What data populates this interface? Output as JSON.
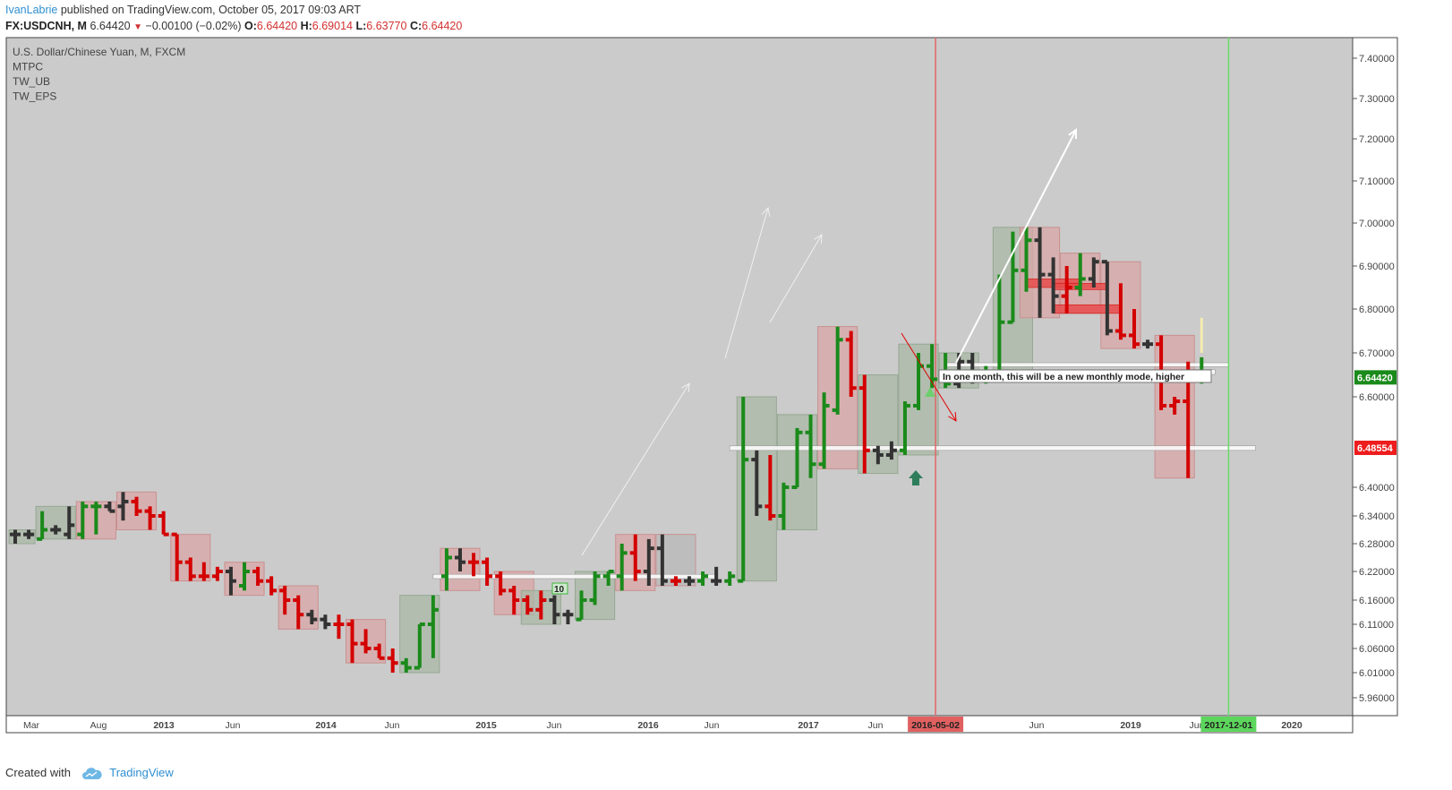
{
  "header": {
    "author": "IvanLabrie",
    "published_text": "published on TradingView.com, October 05, 2017 09:03 ART",
    "symbol": "FX:USDCNH, M",
    "last": "6.64420",
    "change": "−0.00100 (−0.02%)",
    "open_label": "O:",
    "open": "6.64420",
    "high_label": "H:",
    "high": "6.69014",
    "low_label": "L:",
    "low": "6.63770",
    "close_label": "C:",
    "close": "6.64420"
  },
  "legend": [
    "U.S. Dollar/Chinese Yuan, M, FXCM",
    "MTPC",
    "TW_UB",
    "TW_EPS"
  ],
  "footer": {
    "created_with": "Created with",
    "brand": "TradingView"
  },
  "colors": {
    "bull": "#1a8a1a",
    "bear": "#d40000",
    "neutral": "#333333",
    "plot_bg": "#cbcbcb",
    "bull_box": "#a9b8a6",
    "bear_box": "#d9a7a7",
    "vline_red": "#e06666",
    "vline_green": "#66dd66"
  },
  "chart_data": {
    "type": "ohlc",
    "title": "U.S. Dollar/Chinese Yuan, M, FXCM",
    "price_axis": {
      "ticks": [
        "7.40000",
        "7.30000",
        "7.20000",
        "7.10000",
        "7.00000",
        "6.90000",
        "6.80000",
        "6.70000",
        "6.60000",
        "6.40000",
        "6.34000",
        "6.28000",
        "6.22000",
        "6.16000",
        "6.11000",
        "6.06000",
        "6.01000",
        "5.96000"
      ],
      "last_price_label": "6.64420",
      "marker_label": "6.48554"
    },
    "time_axis": {
      "ticks": [
        "Mar",
        "Aug",
        "2013",
        "Jun",
        "2014",
        "Jun",
        "2015",
        "Jun",
        "2016",
        "Jun",
        "2017",
        "Jun",
        "Jun",
        "2019",
        "Jun",
        "2020"
      ],
      "highlight_red": "2016-05-02",
      "highlight_green": "2017-12-01"
    },
    "x_range": [
      "2012-01",
      "2020-07"
    ],
    "bars": [
      {
        "t": "2012-01",
        "o": 6.3,
        "h": 6.31,
        "l": 6.28,
        "c": 6.3,
        "d": "n"
      },
      {
        "t": "2012-02",
        "o": 6.3,
        "h": 6.31,
        "l": 6.29,
        "c": 6.3,
        "d": "n"
      },
      {
        "t": "2012-03",
        "o": 6.29,
        "h": 6.35,
        "l": 6.29,
        "c": 6.31,
        "d": "u"
      },
      {
        "t": "2012-04",
        "o": 6.31,
        "h": 6.32,
        "l": 6.3,
        "c": 6.31,
        "d": "n"
      },
      {
        "t": "2012-05",
        "o": 6.3,
        "h": 6.36,
        "l": 6.29,
        "c": 6.32,
        "d": "n"
      },
      {
        "t": "2012-06",
        "o": 6.3,
        "h": 6.37,
        "l": 6.29,
        "c": 6.36,
        "d": "u"
      },
      {
        "t": "2012-07",
        "o": 6.36,
        "h": 6.37,
        "l": 6.3,
        "c": 6.36,
        "d": "u"
      },
      {
        "t": "2012-08",
        "o": 6.36,
        "h": 6.37,
        "l": 6.35,
        "c": 6.35,
        "d": "n"
      },
      {
        "t": "2012-09",
        "o": 6.36,
        "h": 6.39,
        "l": 6.33,
        "c": 6.37,
        "d": "n"
      },
      {
        "t": "2012-10",
        "o": 6.37,
        "h": 6.38,
        "l": 6.34,
        "c": 6.35,
        "d": "d"
      },
      {
        "t": "2012-11",
        "o": 6.35,
        "h": 6.36,
        "l": 6.31,
        "c": 6.34,
        "d": "d"
      },
      {
        "t": "2012-12",
        "o": 6.34,
        "h": 6.35,
        "l": 6.3,
        "c": 6.3,
        "d": "d"
      },
      {
        "t": "2013-01",
        "o": 6.3,
        "h": 6.3,
        "l": 6.2,
        "c": 6.24,
        "d": "d"
      },
      {
        "t": "2013-02",
        "o": 6.24,
        "h": 6.25,
        "l": 6.2,
        "c": 6.21,
        "d": "d"
      },
      {
        "t": "2013-03",
        "o": 6.21,
        "h": 6.24,
        "l": 6.2,
        "c": 6.21,
        "d": "d"
      },
      {
        "t": "2013-04",
        "o": 6.21,
        "h": 6.23,
        "l": 6.2,
        "c": 6.22,
        "d": "d"
      },
      {
        "t": "2013-05",
        "o": 6.22,
        "h": 6.23,
        "l": 6.17,
        "c": 6.2,
        "d": "n"
      },
      {
        "t": "2013-06",
        "o": 6.19,
        "h": 6.24,
        "l": 6.18,
        "c": 6.22,
        "d": "u"
      },
      {
        "t": "2013-07",
        "o": 6.22,
        "h": 6.23,
        "l": 6.19,
        "c": 6.2,
        "d": "d"
      },
      {
        "t": "2013-08",
        "o": 6.2,
        "h": 6.21,
        "l": 6.17,
        "c": 6.18,
        "d": "d"
      },
      {
        "t": "2013-09",
        "o": 6.18,
        "h": 6.19,
        "l": 6.13,
        "c": 6.16,
        "d": "d"
      },
      {
        "t": "2013-10",
        "o": 6.16,
        "h": 6.17,
        "l": 6.1,
        "c": 6.13,
        "d": "d"
      },
      {
        "t": "2013-11",
        "o": 6.13,
        "h": 6.14,
        "l": 6.11,
        "c": 6.12,
        "d": "n"
      },
      {
        "t": "2013-12",
        "o": 6.12,
        "h": 6.13,
        "l": 6.1,
        "c": 6.11,
        "d": "n"
      },
      {
        "t": "2014-01",
        "o": 6.11,
        "h": 6.13,
        "l": 6.08,
        "c": 6.11,
        "d": "d"
      },
      {
        "t": "2014-02",
        "o": 6.11,
        "h": 6.12,
        "l": 6.03,
        "c": 6.07,
        "d": "d"
      },
      {
        "t": "2014-03",
        "o": 6.07,
        "h": 6.1,
        "l": 6.05,
        "c": 6.06,
        "d": "d"
      },
      {
        "t": "2014-04",
        "o": 6.06,
        "h": 6.07,
        "l": 6.04,
        "c": 6.04,
        "d": "d"
      },
      {
        "t": "2014-05",
        "o": 6.04,
        "h": 6.06,
        "l": 6.01,
        "c": 6.03,
        "d": "d"
      },
      {
        "t": "2014-06",
        "o": 6.03,
        "h": 6.04,
        "l": 6.01,
        "c": 6.02,
        "d": "u"
      },
      {
        "t": "2014-07",
        "o": 6.02,
        "h": 6.11,
        "l": 6.02,
        "c": 6.11,
        "d": "u"
      },
      {
        "t": "2014-08",
        "o": 6.11,
        "h": 6.17,
        "l": 6.04,
        "c": 6.14,
        "d": "u"
      },
      {
        "t": "2014-09",
        "o": 6.21,
        "h": 6.27,
        "l": 6.18,
        "c": 6.25,
        "d": "u"
      },
      {
        "t": "2014-10",
        "o": 6.25,
        "h": 6.27,
        "l": 6.22,
        "c": 6.24,
        "d": "n"
      },
      {
        "t": "2014-11",
        "o": 6.24,
        "h": 6.26,
        "l": 6.21,
        "c": 6.24,
        "d": "d"
      },
      {
        "t": "2014-12",
        "o": 6.24,
        "h": 6.25,
        "l": 6.19,
        "c": 6.21,
        "d": "d"
      },
      {
        "t": "2015-01",
        "o": 6.21,
        "h": 6.22,
        "l": 6.17,
        "c": 6.18,
        "d": "d"
      },
      {
        "t": "2015-02",
        "o": 6.18,
        "h": 6.19,
        "l": 6.13,
        "c": 6.16,
        "d": "d"
      },
      {
        "t": "2015-03",
        "o": 6.16,
        "h": 6.17,
        "l": 6.13,
        "c": 6.14,
        "d": "d"
      },
      {
        "t": "2015-04",
        "o": 6.14,
        "h": 6.18,
        "l": 6.12,
        "c": 6.16,
        "d": "d"
      },
      {
        "t": "2015-05",
        "o": 6.16,
        "h": 6.17,
        "l": 6.11,
        "c": 6.13,
        "d": "n"
      },
      {
        "t": "2015-06",
        "o": 6.13,
        "h": 6.14,
        "l": 6.11,
        "c": 6.13,
        "d": "n"
      },
      {
        "t": "2015-07",
        "o": 6.12,
        "h": 6.18,
        "l": 6.12,
        "c": 6.16,
        "d": "u"
      },
      {
        "t": "2015-08",
        "o": 6.16,
        "h": 6.22,
        "l": 6.15,
        "c": 6.21,
        "d": "u"
      },
      {
        "t": "2015-09",
        "o": 6.21,
        "h": 6.22,
        "l": 6.19,
        "c": 6.22,
        "d": "u"
      },
      {
        "t": "2015-10",
        "o": 6.21,
        "h": 6.28,
        "l": 6.18,
        "c": 6.26,
        "d": "u"
      },
      {
        "t": "2015-11",
        "o": 6.26,
        "h": 6.3,
        "l": 6.2,
        "c": 6.22,
        "d": "d"
      },
      {
        "t": "2015-12",
        "o": 6.22,
        "h": 6.29,
        "l": 6.19,
        "c": 6.27,
        "d": "n"
      },
      {
        "t": "2016-01",
        "o": 6.27,
        "h": 6.3,
        "l": 6.19,
        "c": 6.2,
        "d": "n"
      },
      {
        "t": "2016-02",
        "o": 6.2,
        "h": 6.21,
        "l": 6.19,
        "c": 6.2,
        "d": "d"
      },
      {
        "t": "2016-03",
        "o": 6.2,
        "h": 6.21,
        "l": 6.19,
        "c": 6.2,
        "d": "n"
      },
      {
        "t": "2016-04",
        "o": 6.2,
        "h": 6.22,
        "l": 6.19,
        "c": 6.21,
        "d": "u"
      },
      {
        "t": "2016-05",
        "o": 6.2,
        "h": 6.23,
        "l": 6.19,
        "c": 6.2,
        "d": "n"
      },
      {
        "t": "2016-06",
        "o": 6.2,
        "h": 6.22,
        "l": 6.19,
        "c": 6.21,
        "d": "u"
      },
      {
        "t": "2016-07",
        "o": 6.2,
        "h": 6.6,
        "l": 6.2,
        "c": 6.46,
        "d": "u"
      },
      {
        "t": "2016-08",
        "o": 6.46,
        "h": 6.48,
        "l": 6.34,
        "c": 6.36,
        "d": "n"
      },
      {
        "t": "2016-09",
        "o": 6.36,
        "h": 6.47,
        "l": 6.33,
        "c": 6.34,
        "d": "d"
      },
      {
        "t": "2016-10",
        "o": 6.34,
        "h": 6.41,
        "l": 6.31,
        "c": 6.4,
        "d": "u"
      },
      {
        "t": "2016-11",
        "o": 6.4,
        "h": 6.53,
        "l": 6.4,
        "c": 6.52,
        "d": "u"
      },
      {
        "t": "2016-12",
        "o": 6.52,
        "h": 6.56,
        "l": 6.42,
        "c": 6.45,
        "d": "u"
      },
      {
        "t": "2017-01",
        "o": 6.45,
        "h": 6.61,
        "l": 6.44,
        "c": 6.58,
        "d": "u"
      },
      {
        "t": "2017-02",
        "o": 6.57,
        "h": 6.76,
        "l": 6.56,
        "c": 6.73,
        "d": "u"
      },
      {
        "t": "2017-03",
        "o": 6.73,
        "h": 6.75,
        "l": 6.6,
        "c": 6.62,
        "d": "d"
      },
      {
        "t": "2017-04",
        "o": 6.62,
        "h": 6.65,
        "l": 6.43,
        "c": 6.48,
        "d": "d"
      },
      {
        "t": "2017-05",
        "o": 6.48,
        "h": 6.49,
        "l": 6.45,
        "c": 6.47,
        "d": "n"
      },
      {
        "t": "2017-06",
        "o": 6.47,
        "h": 6.5,
        "l": 6.46,
        "c": 6.48,
        "d": "n"
      },
      {
        "t": "2017-07",
        "o": 6.48,
        "h": 6.59,
        "l": 6.47,
        "c": 6.58,
        "d": "u"
      },
      {
        "t": "2017-08",
        "o": 6.58,
        "h": 6.7,
        "l": 6.57,
        "c": 6.67,
        "d": "u"
      },
      {
        "t": "2017-09",
        "o": 6.67,
        "h": 6.72,
        "l": 6.62,
        "c": 6.64,
        "d": "u"
      },
      {
        "t": "2017-10",
        "o": 6.64,
        "h": 6.7,
        "l": 6.62,
        "c": 6.63,
        "d": "u"
      },
      {
        "t": "2017-11",
        "o": 6.63,
        "h": 6.7,
        "l": 6.62,
        "c": 6.68,
        "d": "n"
      },
      {
        "t": "2017-12",
        "o": 6.68,
        "h": 6.7,
        "l": 6.63,
        "c": 6.65,
        "d": "n"
      },
      {
        "t": "2018-01",
        "o": 6.65,
        "h": 6.67,
        "l": 6.63,
        "c": 6.65,
        "d": "u"
      },
      {
        "t": "2018-02",
        "o": 6.65,
        "h": 6.88,
        "l": 6.65,
        "c": 6.77,
        "d": "u"
      },
      {
        "t": "2018-03",
        "o": 6.77,
        "h": 6.98,
        "l": 6.77,
        "c": 6.89,
        "d": "u"
      },
      {
        "t": "2018-04",
        "o": 6.89,
        "h": 6.99,
        "l": 6.84,
        "c": 6.96,
        "d": "u"
      },
      {
        "t": "2018-05",
        "o": 6.96,
        "h": 6.99,
        "l": 6.78,
        "c": 6.88,
        "d": "n"
      },
      {
        "t": "2018-06",
        "o": 6.88,
        "h": 6.92,
        "l": 6.79,
        "c": 6.83,
        "d": "n"
      },
      {
        "t": "2018-07",
        "o": 6.83,
        "h": 6.9,
        "l": 6.79,
        "c": 6.85,
        "d": "d"
      },
      {
        "t": "2018-08",
        "o": 6.85,
        "h": 6.93,
        "l": 6.83,
        "c": 6.87,
        "d": "u"
      },
      {
        "t": "2018-09",
        "o": 6.87,
        "h": 6.92,
        "l": 6.85,
        "c": 6.91,
        "d": "n"
      },
      {
        "t": "2018-10",
        "o": 6.91,
        "h": 6.91,
        "l": 6.74,
        "c": 6.75,
        "d": "n"
      },
      {
        "t": "2018-11",
        "o": 6.75,
        "h": 6.86,
        "l": 6.73,
        "c": 6.74,
        "d": "d"
      },
      {
        "t": "2018-12",
        "o": 6.74,
        "h": 6.8,
        "l": 6.71,
        "c": 6.72,
        "d": "d"
      },
      {
        "t": "2019-01",
        "o": 6.72,
        "h": 6.73,
        "l": 6.71,
        "c": 6.72,
        "d": "n"
      },
      {
        "t": "2019-02",
        "o": 6.72,
        "h": 6.74,
        "l": 6.57,
        "c": 6.58,
        "d": "d"
      },
      {
        "t": "2019-03",
        "o": 6.58,
        "h": 6.6,
        "l": 6.56,
        "c": 6.59,
        "d": "d"
      },
      {
        "t": "2019-04",
        "o": 6.59,
        "h": 6.68,
        "l": 6.42,
        "c": 6.64,
        "d": "d"
      },
      {
        "t": "2019-05",
        "o": 6.64,
        "h": 6.69,
        "l": 6.63,
        "c": 6.64,
        "d": "u"
      }
    ],
    "annotations": {
      "note": "In one month, this will be a new monthly mode, higher",
      "label_10": "10"
    }
  }
}
